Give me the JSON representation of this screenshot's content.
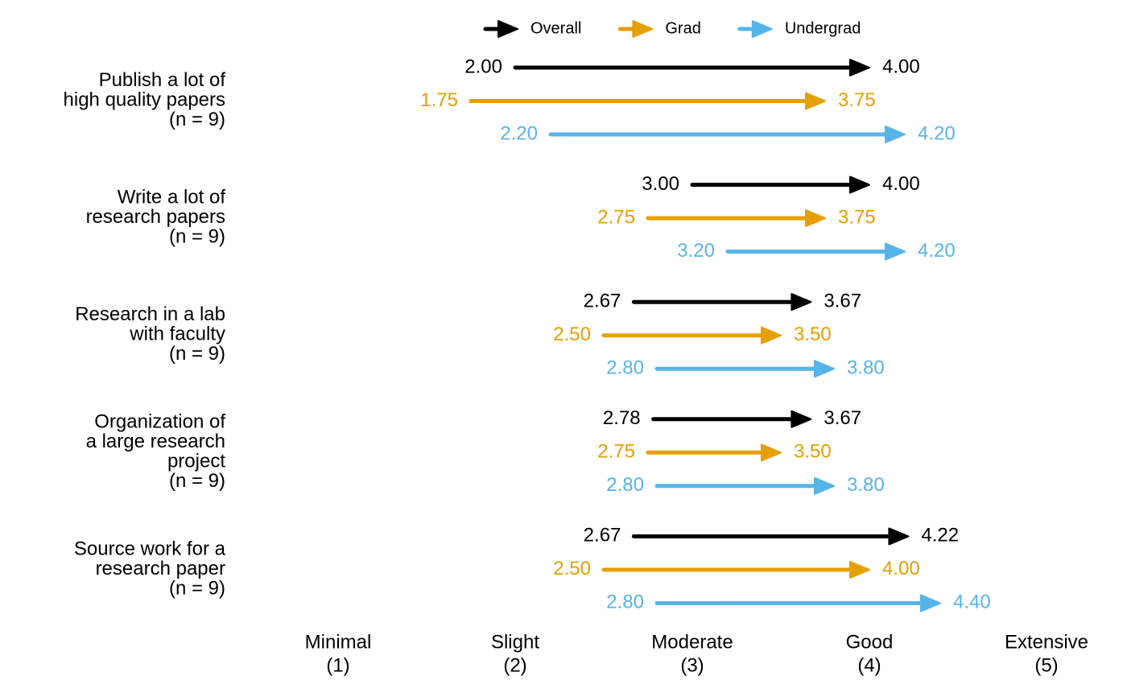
{
  "chart_data": {
    "type": "arrow",
    "categories": [
      [
        "Publish  a lot  of",
        "high  quality   papers",
        "(n  = 9)"
      ],
      [
        "Write  a lot  of",
        "research  papers",
        "(n  = 9)"
      ],
      [
        "Research in  a lab",
        "with  faculty",
        "(n  = 9)"
      ],
      [
        "Organization  of",
        "a large  research",
        "project",
        "(n  = 9)"
      ],
      [
        "Source work for  a",
        "research  paper",
        "(n  = 9)"
      ]
    ],
    "series": [
      {
        "name": "Overall",
        "color": "#000000",
        "values": [
          [
            2,
            4
          ],
          [
            3,
            4
          ],
          [
            2.67,
            3.67
          ],
          [
            2.78,
            3.67
          ],
          [
            2.67,
            4.22
          ]
        ],
        "value_labels": [
          [
            "2.00",
            "4.00"
          ],
          [
            "3.00",
            "4.00"
          ],
          [
            "2.67",
            "3.67"
          ],
          [
            "2.78",
            "3.67"
          ],
          [
            "2.67",
            "4.22"
          ]
        ]
      },
      {
        "name": "Grad",
        "color": "#E69F00",
        "values": [
          [
            1.75,
            3.75
          ],
          [
            2.75,
            3.75
          ],
          [
            2.5,
            3.5
          ],
          [
            2.75,
            3.5
          ],
          [
            2.5,
            4
          ]
        ],
        "value_labels": [
          [
            "1.75",
            "3.75"
          ],
          [
            "2.75",
            "3.75"
          ],
          [
            "2.50",
            "3.50"
          ],
          [
            "2.75",
            "3.50"
          ],
          [
            "2.50",
            "4.00"
          ]
        ]
      },
      {
        "name": "Undergrad",
        "color": "#56B4E9",
        "values": [
          [
            2.2,
            4.2
          ],
          [
            3.2,
            4.2
          ],
          [
            2.8,
            3.8
          ],
          [
            2.8,
            3.8
          ],
          [
            2.8,
            4.4
          ]
        ],
        "value_labels": [
          [
            "2.20",
            "4.20"
          ],
          [
            "3.20",
            "4.20"
          ],
          [
            "2.80",
            "3.80"
          ],
          [
            "2.80",
            "3.80"
          ],
          [
            "2.80",
            "4.40"
          ]
        ]
      }
    ],
    "xlim": [
      1,
      5
    ],
    "xticks": [
      {
        "value": 1,
        "label": [
          "Minimal",
          "(1)"
        ]
      },
      {
        "value": 2,
        "label": [
          "Slight",
          "(2)"
        ]
      },
      {
        "value": 3,
        "label": [
          "Moderate",
          "(3)"
        ]
      },
      {
        "value": 4,
        "label": [
          "Good",
          "(4)"
        ]
      },
      {
        "value": 5,
        "label": [
          "Extensive",
          "(5)"
        ]
      }
    ],
    "grid": false
  }
}
